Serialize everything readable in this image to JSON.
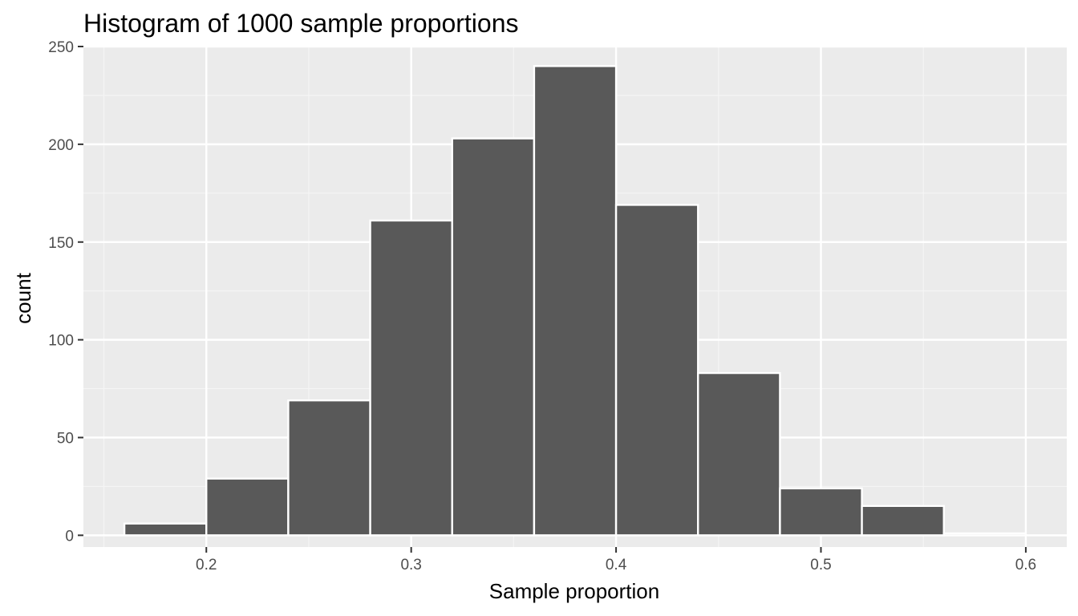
{
  "chart_data": {
    "type": "bar",
    "title": "Histogram of 1000 sample proportions",
    "xlabel": "Sample proportion",
    "ylabel": "count",
    "xlim": [
      0.14,
      0.62
    ],
    "ylim": [
      -6,
      250
    ],
    "x_ticks": [
      0.2,
      0.3,
      0.4,
      0.5,
      0.6
    ],
    "y_ticks": [
      0,
      50,
      100,
      150,
      200,
      250
    ],
    "x_tick_labels": [
      "0.2",
      "0.3",
      "0.4",
      "0.5",
      "0.6"
    ],
    "y_tick_labels": [
      "0",
      "50",
      "100",
      "150",
      "200",
      "250"
    ],
    "bins": [
      {
        "x0": 0.16,
        "x1": 0.2,
        "count": 6
      },
      {
        "x0": 0.2,
        "x1": 0.24,
        "count": 29
      },
      {
        "x0": 0.24,
        "x1": 0.28,
        "count": 69
      },
      {
        "x0": 0.28,
        "x1": 0.32,
        "count": 161
      },
      {
        "x0": 0.32,
        "x1": 0.36,
        "count": 203
      },
      {
        "x0": 0.36,
        "x1": 0.4,
        "count": 240
      },
      {
        "x0": 0.4,
        "x1": 0.44,
        "count": 169
      },
      {
        "x0": 0.44,
        "x1": 0.48,
        "count": 83
      },
      {
        "x0": 0.48,
        "x1": 0.52,
        "count": 24
      },
      {
        "x0": 0.52,
        "x1": 0.56,
        "count": 15
      },
      {
        "x0": 0.56,
        "x1": 0.6,
        "count": 1
      }
    ],
    "grid": true,
    "colors": {
      "panel_background": "#ebebeb",
      "grid_major": "#ffffff",
      "grid_minor": "#f5f5f5",
      "bar_fill": "#595959",
      "bar_outline": "#ffffff",
      "tick_label": "#4d4d4d",
      "text": "#000000"
    }
  }
}
